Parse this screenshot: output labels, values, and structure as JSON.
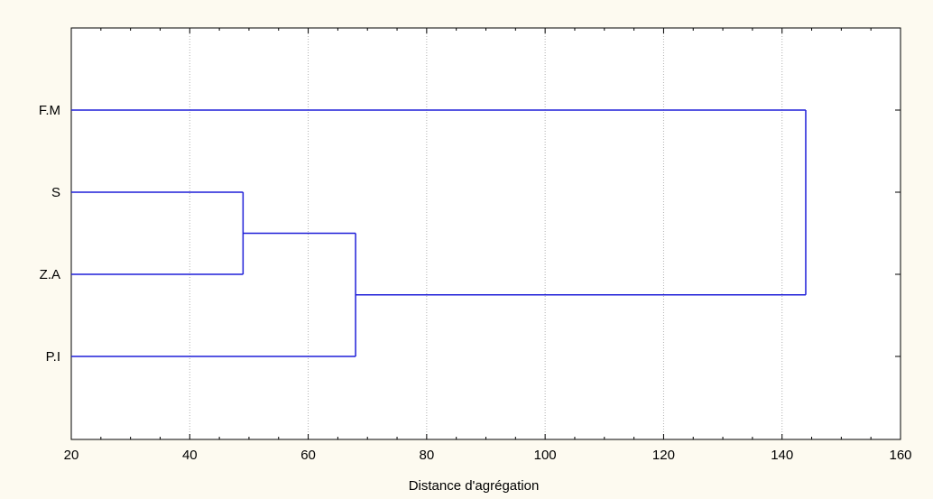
{
  "chart_data": {
    "type": "dendrogram",
    "orientation": "horizontal",
    "xlabel": "Distance d'agrégation",
    "xlim": [
      20,
      160
    ],
    "xticks": [
      20,
      40,
      60,
      80,
      100,
      120,
      140,
      160
    ],
    "leaves": [
      "F.M",
      "S",
      "Z.A",
      "P.I"
    ],
    "merges": [
      {
        "left": "S",
        "right": "Z.A",
        "distance": 49
      },
      {
        "left": "S+Z.A",
        "right": "P.I",
        "distance": 68
      },
      {
        "left": "F.M",
        "right": "S+Z.A+P.I",
        "distance": 144
      }
    ],
    "grid": true,
    "colors": {
      "branch": "#1f1fd8",
      "background": "#fdfaf0",
      "plot_area": "#ffffff"
    }
  }
}
